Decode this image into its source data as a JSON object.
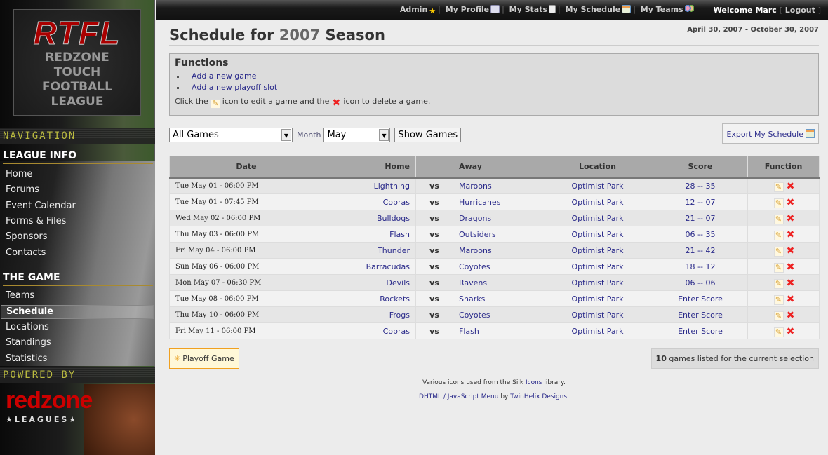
{
  "sidebar": {
    "logo": {
      "title": "RTFL",
      "lines": [
        "REDZONE",
        "TOUCH",
        "FOOTBALL",
        "LEAGUE"
      ]
    },
    "navigation_label": "NAVIGATION",
    "sections": [
      {
        "title": "LEAGUE INFO",
        "items": [
          "Home",
          "Forums",
          "Event Calendar",
          "Forms & Files",
          "Sponsors",
          "Contacts"
        ]
      },
      {
        "title": "THE GAME",
        "items": [
          "Teams",
          "Schedule",
          "Locations",
          "Standings",
          "Statistics"
        ]
      }
    ],
    "active_item": "Schedule",
    "powered_by_label": "POWERED BY",
    "powered_logo": {
      "name": "redzone",
      "sub": "★LEAGUES★"
    }
  },
  "topbar": {
    "links": [
      "Admin",
      "My Profile",
      "My Stats",
      "My Schedule",
      "My Teams"
    ],
    "welcome": "Welcome Marc",
    "logout": "Logout",
    "bracket_open": "[",
    "bracket_close": "]"
  },
  "page": {
    "title_prefix": "Schedule for",
    "year": "2007",
    "title_suffix": "Season",
    "date_range": "April 30, 2007 - October 30, 2007"
  },
  "functions": {
    "title": "Functions",
    "links": [
      "Add a new game",
      "Add a new playoff slot"
    ],
    "help_1": "Click the",
    "help_2": "icon to edit a game and the",
    "help_3": "icon to delete a game."
  },
  "filters": {
    "game_filter": "All Games",
    "month_label": "Month",
    "month": "May",
    "show_button": "Show Games",
    "export": "Export My Schedule"
  },
  "table": {
    "headers": [
      "Date",
      "Home",
      "",
      "Away",
      "Location",
      "Score",
      "Function"
    ],
    "rows": [
      {
        "date": "Tue May 01 - 06:00 PM",
        "home": "Lightning",
        "vs": "vs",
        "away": "Maroons",
        "location": "Optimist Park",
        "score": "28 -- 35"
      },
      {
        "date": "Tue May 01 - 07:45 PM",
        "home": "Cobras",
        "vs": "vs",
        "away": "Hurricanes",
        "location": "Optimist Park",
        "score": "12 -- 07"
      },
      {
        "date": "Wed May 02 - 06:00 PM",
        "home": "Bulldogs",
        "vs": "vs",
        "away": "Dragons",
        "location": "Optimist Park",
        "score": "21 -- 07"
      },
      {
        "date": "Thu May 03 - 06:00 PM",
        "home": "Flash",
        "vs": "vs",
        "away": "Outsiders",
        "location": "Optimist Park",
        "score": "06 -- 35"
      },
      {
        "date": "Fri May 04 - 06:00 PM",
        "home": "Thunder",
        "vs": "vs",
        "away": "Maroons",
        "location": "Optimist Park",
        "score": "21 -- 42"
      },
      {
        "date": "Sun May 06 - 06:00 PM",
        "home": "Barracudas",
        "vs": "vs",
        "away": "Coyotes",
        "location": "Optimist Park",
        "score": "18 -- 12"
      },
      {
        "date": "Mon May 07 - 06:30 PM",
        "home": "Devils",
        "vs": "vs",
        "away": "Ravens",
        "location": "Optimist Park",
        "score": "06 -- 06"
      },
      {
        "date": "Tue May 08 - 06:00 PM",
        "home": "Rockets",
        "vs": "vs",
        "away": "Sharks",
        "location": "Optimist Park",
        "score": "Enter Score"
      },
      {
        "date": "Thu May 10 - 06:00 PM",
        "home": "Frogs",
        "vs": "vs",
        "away": "Coyotes",
        "location": "Optimist Park",
        "score": "Enter Score"
      },
      {
        "date": "Fri May 11 - 06:00 PM",
        "home": "Cobras",
        "vs": "vs",
        "away": "Flash",
        "location": "Optimist Park",
        "score": "Enter Score"
      }
    ]
  },
  "footer": {
    "playoff_button": "Playoff Game",
    "count": "10",
    "count_text": "games listed for the current selection",
    "credit_1_pre": "Various icons used from the Silk",
    "credit_1_link": "Icons",
    "credit_1_post": "library.",
    "credit_2_link": "DHTML / JavaScript Menu",
    "credit_2_mid": "by",
    "credit_2_link2": "TwinHelix Designs"
  }
}
